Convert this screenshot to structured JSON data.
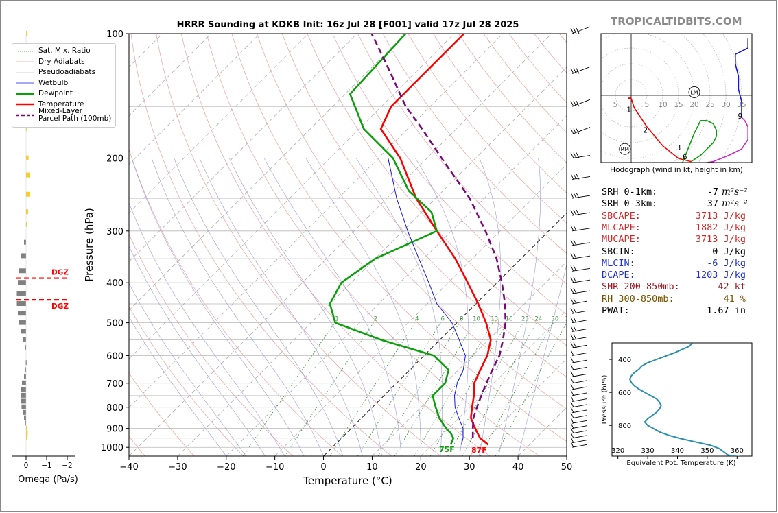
{
  "header": {
    "title": "HRRR Sounding at KDKB Init: 16z Jul 28 [F001] valid 17z Jul 28 2025",
    "brand": "TROPICALTIDBITS.COM"
  },
  "legend": {
    "items": [
      {
        "label": "Sat. Mix. Ratio",
        "color": "#2e8b2e",
        "style": "dotted"
      },
      {
        "label": "Dry Adiabats",
        "color": "#e8a0a0",
        "style": "solid"
      },
      {
        "label": "Pseudoadiabats",
        "color": "#c0c0c0",
        "style": "solid"
      },
      {
        "label": "Wetbulb",
        "color": "#1414e6",
        "style": "solid"
      },
      {
        "label": "Dewpoint",
        "color": "#0aa00a",
        "style": "solid"
      },
      {
        "label": "Temperature",
        "color": "#ff0000",
        "style": "solid"
      },
      {
        "label": "Mixed-Layer\nParcel Path (100mb)",
        "color": "#7a0a7a",
        "style": "dashed"
      }
    ]
  },
  "omega": {
    "xlabel": "Omega (Pa/s)",
    "ticks": [
      "0",
      "−1",
      "−2"
    ],
    "dgz_label": "DGZ",
    "dgz_pressures": [
      390,
      440
    ],
    "bars": [
      {
        "p": 100,
        "v": -0.05
      },
      {
        "p": 120,
        "v": -0.1
      },
      {
        "p": 140,
        "v": 0.05
      },
      {
        "p": 170,
        "v": -0.05
      },
      {
        "p": 200,
        "v": -0.12
      },
      {
        "p": 220,
        "v": -0.2
      },
      {
        "p": 245,
        "v": -0.18
      },
      {
        "p": 270,
        "v": -0.1
      },
      {
        "p": 290,
        "v": -0.05
      },
      {
        "p": 320,
        "v": 0.1
      },
      {
        "p": 345,
        "v": 0.25
      },
      {
        "p": 375,
        "v": 0.35
      },
      {
        "p": 400,
        "v": 0.4
      },
      {
        "p": 425,
        "v": 0.45
      },
      {
        "p": 450,
        "v": 0.45
      },
      {
        "p": 475,
        "v": 0.4
      },
      {
        "p": 500,
        "v": 0.35
      },
      {
        "p": 525,
        "v": 0.25
      },
      {
        "p": 550,
        "v": 0.15
      },
      {
        "p": 575,
        "v": 0.05
      },
      {
        "p": 625,
        "v": 0.02
      },
      {
        "p": 650,
        "v": 0.05
      },
      {
        "p": 675,
        "v": 0.1
      },
      {
        "p": 700,
        "v": 0.2
      },
      {
        "p": 725,
        "v": 0.25
      },
      {
        "p": 750,
        "v": 0.25
      },
      {
        "p": 775,
        "v": 0.25
      },
      {
        "p": 800,
        "v": 0.22
      },
      {
        "p": 825,
        "v": 0.15
      },
      {
        "p": 850,
        "v": 0.1
      },
      {
        "p": 875,
        "v": 0.05
      },
      {
        "p": 900,
        "v": -0.05
      },
      {
        "p": 925,
        "v": -0.08
      },
      {
        "p": 950,
        "v": -0.05
      }
    ]
  },
  "skewt": {
    "ylabel": "Pressure (hPa)",
    "xlabel": "Temperature (°C)",
    "x_ticks": [
      "−40",
      "−30",
      "−20",
      "−10",
      "0",
      "10",
      "20",
      "30",
      "40",
      "50"
    ],
    "y_ticks": [
      "100",
      "200",
      "300",
      "400",
      "500",
      "600",
      "700",
      "800",
      "900",
      "1000"
    ],
    "surface_temp_label": "87F",
    "surface_dew_label": "75F",
    "mixing_ratio_labels": [
      "1",
      "2",
      "4",
      "6",
      "8",
      "10",
      "13",
      "16",
      "20",
      "24",
      "30",
      "36"
    ]
  },
  "hodograph": {
    "caption": "Hodograph (wind in kt, height in km)",
    "ring_labels": [
      "5",
      "5",
      "10",
      "15",
      "20",
      "25",
      "30",
      "35"
    ],
    "height_labels": [
      "1",
      "2",
      "3",
      "6",
      "9"
    ],
    "lm_label": "LM",
    "rm_label": "RM"
  },
  "stats": [
    {
      "label": "SRH 0-1km:",
      "value": "-7",
      "unit": "m²s⁻²",
      "color": "#000000"
    },
    {
      "label": "SRH 0-3km:",
      "value": "37",
      "unit": "m²s⁻²",
      "color": "#000000"
    },
    {
      "label": "SBCAPE:",
      "value": "3713 J/kg",
      "unit": "",
      "color": "#d62728"
    },
    {
      "label": "MLCAPE:",
      "value": "1882 J/kg",
      "unit": "",
      "color": "#d62728"
    },
    {
      "label": "MUCAPE:",
      "value": "3713 J/kg",
      "unit": "",
      "color": "#d62728"
    },
    {
      "label": "SBCIN:",
      "value": "0 J/kg",
      "unit": "",
      "color": "#000000"
    },
    {
      "label": "MLCIN:",
      "value": "-6 J/kg",
      "unit": "",
      "color": "#2030d0"
    },
    {
      "label": "DCAPE:",
      "value": "1203 J/kg",
      "unit": "",
      "color": "#2030d0"
    },
    {
      "label": "SHR 200-850mb:",
      "value": "42 kt",
      "unit": "",
      "color": "#a0141e"
    },
    {
      "label": "RH 300-850mb:",
      "value": "41 %",
      "unit": "",
      "color": "#7a5200"
    },
    {
      "label": "PWAT:",
      "value": "1.67 in",
      "unit": "",
      "color": "#000000"
    }
  ],
  "theta_e": {
    "ylabel": "Pressure (hPa)",
    "xlabel": "Equivalent Pot. Temperature (K)",
    "x_ticks": [
      "320",
      "330",
      "340",
      "350",
      "360"
    ],
    "y_ticks": [
      "400",
      "600",
      "800"
    ]
  },
  "chart_data": [
    {
      "type": "line",
      "title": "HRRR Sounding at KDKB Init: 16z Jul 28 [F001] valid 17z Jul 28 2025",
      "xlabel": "Temperature (°C)",
      "ylabel": "Pressure (hPa)",
      "xlim": [
        -40,
        50
      ],
      "ylim": [
        1050,
        100
      ],
      "y_scale": "log",
      "skew": true,
      "series": [
        {
          "name": "Temperature",
          "color": "#ff0000",
          "p": [
            985,
            950,
            925,
            900,
            850,
            800,
            750,
            700,
            650,
            600,
            550,
            500,
            450,
            400,
            350,
            300,
            250,
            200,
            170,
            150,
            120,
            100
          ],
          "t": [
            31.5,
            28.5,
            27,
            25.5,
            22.5,
            20.5,
            18.5,
            16,
            14.5,
            13,
            10.5,
            6,
            0.5,
            -6,
            -13.5,
            -23,
            -34,
            -45.5,
            -55.5,
            -58,
            -58,
            -58
          ]
        },
        {
          "name": "Dewpoint",
          "color": "#0aa00a",
          "p": [
            985,
            950,
            925,
            900,
            850,
            800,
            750,
            700,
            650,
            600,
            550,
            500,
            450,
            400,
            350,
            300,
            270,
            240,
            200,
            170,
            140,
            100
          ],
          "t": [
            23.8,
            23,
            21.5,
            19.5,
            16,
            13,
            10,
            10,
            8,
            2,
            -12,
            -25,
            -30,
            -32,
            -30,
            -23,
            -28,
            -37,
            -47,
            -59,
            -69,
            -70
          ]
        },
        {
          "name": "Wetbulb",
          "color": "#1414e6",
          "p": [
            985,
            950,
            900,
            850,
            800,
            750,
            700,
            650,
            600,
            550,
            500,
            450,
            400,
            350,
            300,
            250,
            200
          ],
          "t": [
            26,
            25,
            23,
            20,
            17,
            14.5,
            12.5,
            11,
            8.5,
            4,
            -1,
            -8,
            -14,
            -21,
            -29,
            -38,
            -48
          ]
        },
        {
          "name": "Mixed-Layer Parcel Path (100mb)",
          "color": "#7a0a7a",
          "p": [
            950,
            900,
            850,
            800,
            750,
            700,
            650,
            600,
            550,
            500,
            450,
            400,
            350,
            300,
            250,
            200,
            170,
            150,
            120,
            100
          ],
          "t": [
            27,
            25,
            23,
            21.5,
            20,
            18.5,
            17,
            15.5,
            13,
            10,
            6,
            1,
            -5,
            -13,
            -23,
            -37,
            -47,
            -55,
            -67,
            -77
          ]
        }
      ]
    },
    {
      "type": "line",
      "title": "",
      "xlabel": "",
      "ylabel": "",
      "note": "Hodograph (wind in kt, height in km)",
      "series": [
        {
          "name": "0-1 km",
          "color": "#ff0000",
          "u": [
            0,
            -1,
            0,
            1
          ],
          "v": [
            -0.5,
            -1,
            -1,
            -4
          ]
        },
        {
          "name": "1-3 km",
          "color": "#ff0000",
          "u": [
            1,
            5,
            10,
            15,
            19
          ],
          "v": [
            -4,
            -10,
            -16,
            -20,
            -21
          ]
        },
        {
          "name": "3-6 km",
          "color": "#0aa00a",
          "u": [
            19,
            22,
            24,
            26,
            27,
            27,
            26,
            24,
            22,
            20,
            18,
            16
          ],
          "v": [
            -21,
            -19,
            -17,
            -15,
            -13,
            -11,
            -9,
            -8,
            -8,
            -12,
            -17,
            -22
          ]
        },
        {
          "name": "6-9 km",
          "color": "#cc22cc",
          "u": [
            16,
            20,
            26,
            31,
            35,
            37,
            37,
            36,
            35
          ],
          "v": [
            -22,
            -22,
            -21,
            -19,
            -17,
            -14,
            -10,
            -8,
            -7
          ]
        },
        {
          "name": "9+ km",
          "color": "#1414e6",
          "u": [
            35,
            35,
            34,
            34,
            33,
            33,
            35,
            37,
            37
          ],
          "v": [
            -7,
            -2,
            2,
            6,
            10,
            13,
            14,
            15,
            18
          ]
        }
      ],
      "storm_motion": {
        "LM": [
          20,
          1
        ],
        "RM": [
          -2,
          -17
        ]
      },
      "rings": [
        5,
        10,
        15,
        20,
        25,
        30,
        35
      ]
    },
    {
      "type": "line",
      "xlabel": "Equivalent Pot. Temperature (K)",
      "ylabel": "Pressure (hPa)",
      "xlim": [
        318,
        365
      ],
      "ylim": [
        1000,
        300
      ],
      "series": [
        {
          "name": "",
          "color": "#2a8fb0",
          "p": [
            990,
            980,
            960,
            940,
            920,
            900,
            880,
            860,
            840,
            820,
            800,
            780,
            760,
            740,
            720,
            700,
            680,
            660,
            640,
            620,
            600,
            580,
            560,
            540,
            520,
            500,
            480,
            460,
            440,
            420,
            400,
            380,
            360,
            340,
            320,
            300
          ],
          "x": [
            361,
            357,
            355.5,
            354,
            351,
            346,
            341,
            337,
            334,
            332,
            330,
            329,
            330,
            331.5,
            333,
            334,
            334.5,
            334,
            333,
            331,
            329,
            327,
            325.5,
            324.5,
            324,
            324.5,
            325.5,
            327,
            328,
            330,
            333,
            336,
            339,
            341.5,
            344,
            345
          ]
        }
      ]
    }
  ]
}
